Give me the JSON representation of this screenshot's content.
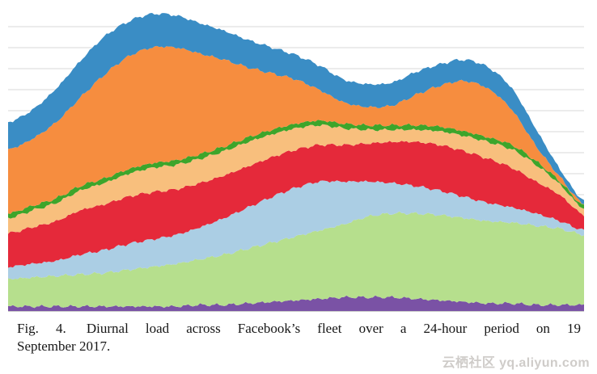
{
  "figure": {
    "caption_label": "Fig. 4.",
    "caption_line1": "Diurnal load across Facebook’s fleet over a 24-hour period on 19",
    "caption_line2": "September 2017."
  },
  "watermark": {
    "text": "云栖社区 yq.aliyun.com"
  },
  "chart_data": {
    "type": "area",
    "stacked": true,
    "title": "Fig. 4. Diurnal load across Facebook’s fleet over a 24-hour period on 19 September 2017.",
    "xlabel": "",
    "ylabel": "",
    "axes_labels_visible": false,
    "legend": "none",
    "x_range": [
      0,
      24
    ],
    "x_hours": [
      0,
      1,
      2,
      3,
      4,
      5,
      6,
      7,
      8,
      9,
      10,
      11,
      12,
      13,
      14,
      15,
      16,
      17,
      18,
      19,
      20,
      21,
      22,
      23,
      24
    ],
    "y_unit": "percent_of_plot_height_estimated",
    "gridlines": {
      "orientation": "horizontal",
      "color": "#dadada"
    },
    "series_order": "bottom_to_top",
    "series": [
      {
        "name": "purple",
        "color": "#7a52a5",
        "values": [
          1.5,
          1.5,
          1.5,
          1.5,
          1.5,
          1.5,
          1.5,
          1.5,
          2,
          2,
          2.5,
          3,
          3.5,
          4,
          4.5,
          4.5,
          4.5,
          4,
          3.5,
          3,
          2.5,
          2.5,
          2,
          2,
          2
        ]
      },
      {
        "name": "light-green",
        "color": "#b6df8d",
        "values": [
          9,
          9.5,
          10,
          10.5,
          11,
          12,
          13,
          14,
          15,
          16.5,
          18,
          19.5,
          21,
          22.5,
          24,
          26.5,
          27.5,
          28,
          28,
          27.5,
          27,
          26.5,
          26,
          25,
          23
        ]
      },
      {
        "name": "light-blue",
        "color": "#abcee4",
        "values": [
          4,
          4.5,
          5,
          6.5,
          7.5,
          8.5,
          9,
          9.5,
          10.5,
          12,
          13.5,
          15,
          16,
          16,
          14,
          11.5,
          10,
          9,
          8,
          7,
          6,
          5,
          4,
          2.5,
          1.5
        ]
      },
      {
        "name": "red",
        "color": "#e5293a",
        "values": [
          11,
          12,
          13,
          14.5,
          15,
          15.5,
          15.5,
          15,
          14.5,
          14,
          13.5,
          13,
          12.5,
          12,
          12,
          12.5,
          13.5,
          14.5,
          15,
          15,
          14.5,
          13,
          10.5,
          8.5,
          5
        ]
      },
      {
        "name": "peach",
        "color": "#f8bf7d",
        "values": [
          5,
          5.5,
          6,
          6.5,
          7,
          7.5,
          8,
          8,
          8,
          8,
          8,
          7.5,
          7,
          6.5,
          5.5,
          4.5,
          4,
          4,
          4.5,
          5,
          5.5,
          6,
          5.5,
          3.5,
          2
        ]
      },
      {
        "name": "green",
        "color": "#3da52b",
        "values": [
          1.5,
          1.5,
          1.5,
          1.5,
          1.5,
          1.5,
          1.5,
          1.5,
          1.5,
          1.5,
          1.5,
          1.5,
          1.5,
          1.5,
          1.5,
          1.5,
          1.5,
          1.5,
          1.5,
          1.5,
          1.5,
          1.5,
          1.2,
          1,
          1
        ]
      },
      {
        "name": "orange",
        "color": "#f68d3f",
        "values": [
          21,
          22,
          25,
          29,
          34,
          37,
          38,
          37,
          33,
          28.5,
          23,
          18.5,
          14.5,
          10,
          7,
          6,
          6.5,
          10,
          13.5,
          16.5,
          16,
          11.5,
          5,
          1.5,
          0.5
        ]
      },
      {
        "name": "blue",
        "color": "#3a8dc5",
        "values": [
          9,
          9.5,
          11,
          12,
          12.5,
          11.5,
          11,
          10.5,
          10,
          9.5,
          9,
          8.5,
          8,
          8,
          7.5,
          7.5,
          7.5,
          7.5,
          7,
          7,
          7,
          7,
          5.5,
          2.5,
          1.2
        ]
      }
    ]
  }
}
